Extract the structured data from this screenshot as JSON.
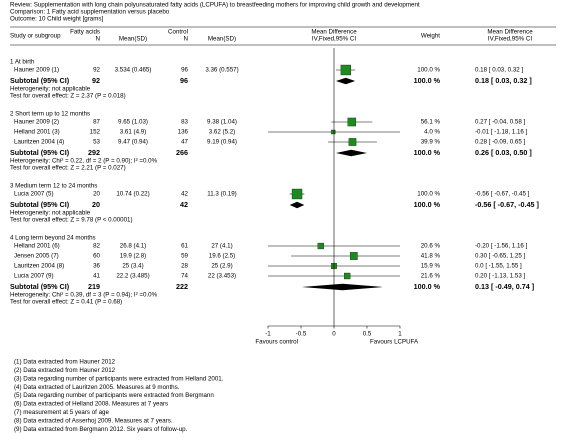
{
  "header": {
    "review": "Review: Supplementation with long chain polyunsaturated fatty acids (LCPUFA) to breastfeeding mothers for improving child growth and development",
    "comparison": "Comparison: 1 Fatty acid supplementation versus placebo",
    "outcome": "Outcome: 10 Child weight [grams]"
  },
  "columns": {
    "study": "Study or subgroup",
    "group1": "Fatty acids",
    "n1": "N",
    "msd1": "Mean(SD)",
    "group2": "Control",
    "n2": "N",
    "msd2": "Mean(SD)",
    "effect": "Mean Difference",
    "effect_method": "IV,Fixed,95% CI",
    "weight": "Weight",
    "ci": "Mean Difference",
    "ci_method": "IV,Fixed,95% CI"
  },
  "chart_data": {
    "type": "forest",
    "xlim": [
      -1,
      1
    ],
    "xticks": [
      -1,
      -0.5,
      0,
      0.5,
      1
    ],
    "xlabel_left": "Favours control",
    "xlabel_right": "Favours LCPUFA",
    "color": "#1f8a1f",
    "subgroups": [
      {
        "title": "1 At birth",
        "studies": [
          {
            "name": "Hauner 2009 (1)",
            "n1": 92,
            "msd1": "3.534 (0.465)",
            "n2": 96,
            "msd2": "3.36 (0.557)",
            "weight": 100.0,
            "weight_label": "100.0 %",
            "md": 0.18,
            "lo": 0.03,
            "hi": 0.32,
            "ci_label": "0.18 [ 0.03, 0.32 ]"
          }
        ],
        "subtotal": {
          "label": "Subtotal (95% CI)",
          "n1": 92,
          "n2": 96,
          "weight_label": "100.0 %",
          "md": 0.18,
          "lo": 0.03,
          "hi": 0.32,
          "ci_label": "0.18 [ 0.03, 0.32 ]"
        },
        "heterogeneity": "Heterogeneity: not applicable",
        "overall": "Test for overall effect: Z = 2.37 (P = 0.018)"
      },
      {
        "title": "2 Short term up to 12 months",
        "studies": [
          {
            "name": "Hauner 2009 (2)",
            "n1": 87,
            "msd1": "9.65 (1.03)",
            "n2": 83,
            "msd2": "9.38 (1.04)",
            "weight": 56.1,
            "weight_label": "56.1 %",
            "md": 0.27,
            "lo": -0.04,
            "hi": 0.58,
            "ci_label": "0.27 [ -0.04, 0.58 ]"
          },
          {
            "name": "Helland 2001 (3)",
            "n1": 152,
            "msd1": "3.61 (4.9)",
            "n2": 136,
            "msd2": "3.62 (5.2)",
            "weight": 4.0,
            "weight_label": "4.0 %",
            "md": -0.01,
            "lo": -1.18,
            "hi": 1.16,
            "ci_label": "-0.01 [ -1.18, 1.16 ]"
          },
          {
            "name": "Lauritzen 2004 (4)",
            "n1": 53,
            "msd1": "9.47 (0.94)",
            "n2": 47,
            "msd2": "9.19 (0.94)",
            "weight": 39.9,
            "weight_label": "39.9 %",
            "md": 0.28,
            "lo": -0.09,
            "hi": 0.65,
            "ci_label": "0.28 [ -0.09, 0.65 ]"
          }
        ],
        "subtotal": {
          "label": "Subtotal (95% CI)",
          "n1": 292,
          "n2": 266,
          "weight_label": "100.0 %",
          "md": 0.26,
          "lo": 0.03,
          "hi": 0.5,
          "ci_label": "0.26 [ 0.03, 0.50 ]"
        },
        "heterogeneity": "Heterogeneity: Chi² = 0.22, df = 2 (P = 0.90); I² =0.0%",
        "overall": "Test for overall effect: Z = 2.21 (P = 0.027)"
      },
      {
        "title": "3 Medium term 12 to 24 months",
        "studies": [
          {
            "name": "Lucia 2007 (5)",
            "n1": 20,
            "msd1": "10.74 (0.22)",
            "n2": 42,
            "msd2": "11.3 (0.19)",
            "weight": 100.0,
            "weight_label": "100.0 %",
            "md": -0.56,
            "lo": -0.67,
            "hi": -0.45,
            "ci_label": "-0.56 [ -0.67, -0.45 ]"
          }
        ],
        "subtotal": {
          "label": "Subtotal (95% CI)",
          "n1": 20,
          "n2": 42,
          "weight_label": "100.0 %",
          "md": -0.56,
          "lo": -0.67,
          "hi": -0.45,
          "ci_label": "-0.56 [ -0.67, -0.45 ]"
        },
        "heterogeneity": "Heterogeneity: not applicable",
        "overall": "Test for overall effect: Z = 9.78 (P < 0.00001)"
      },
      {
        "title": "4 Long term beyond 24 months",
        "studies": [
          {
            "name": "Helland 2001 (6)",
            "n1": 82,
            "msd1": "26.8 (4.1)",
            "n2": 61,
            "msd2": "27 (4.1)",
            "weight": 20.6,
            "weight_label": "20.6 %",
            "md": -0.2,
            "lo": -1.56,
            "hi": 1.16,
            "ci_label": "-0.20 [ -1.56, 1.16 ]"
          },
          {
            "name": "Jensen 2005 (7)",
            "n1": 60,
            "msd1": "19.9 (2.8)",
            "n2": 59,
            "msd2": "19.6 (2.5)",
            "weight": 41.8,
            "weight_label": "41.8 %",
            "md": 0.3,
            "lo": -0.65,
            "hi": 1.25,
            "ci_label": "0.30 [ -0.65, 1.25 ]"
          },
          {
            "name": "Lauritzen 2004 (8)",
            "n1": 36,
            "msd1": "25 (3.4)",
            "n2": 28,
            "msd2": "25 (2.9)",
            "weight": 15.9,
            "weight_label": "15.9 %",
            "md": 0.0,
            "lo": -1.55,
            "hi": 1.55,
            "ci_label": "0.0 [ -1.55, 1.55 ]"
          },
          {
            "name": "Lucia 2007 (9)",
            "n1": 41,
            "msd1": "22.2 (3.485)",
            "n2": 74,
            "msd2": "22 (3.453)",
            "weight": 21.6,
            "weight_label": "21.6 %",
            "md": 0.2,
            "lo": -1.13,
            "hi": 1.53,
            "ci_label": "0.20 [ -1.13, 1.53 ]"
          }
        ],
        "subtotal": {
          "label": "Subtotal (95% CI)",
          "n1": 219,
          "n2": 222,
          "weight_label": "100.0 %",
          "md": 0.13,
          "lo": -0.49,
          "hi": 0.74,
          "ci_label": "0.13 [ -0.49, 0.74 ]"
        },
        "heterogeneity": "Heterogeneity: Chi² = 0.39, df = 3 (P = 0.94); I² =0.0%",
        "overall": "Test for overall effect: Z = 0.41 (P = 0.68)"
      }
    ]
  },
  "footnotes": [
    "(1) Data extracted from Hauner 2012",
    "(2) Data extracted from Hauner 2012",
    "(3) Data regarding number of participants were extracted from Helland 2001.",
    "(4) Data extracted of Lauritzen 2005. Measures at 9 months.",
    "(5) Data regarding number of participants were extracted from Bergmann",
    "(6) Data extracted of Helland 2008. Measures at 7 years",
    "(7) measurement at 5 years of age",
    "(8) Data extracted of Asserhoj 2009. Measures at 7 years.",
    "(9) Data extracted from Bergmann 2012. Six years of follow-up."
  ]
}
